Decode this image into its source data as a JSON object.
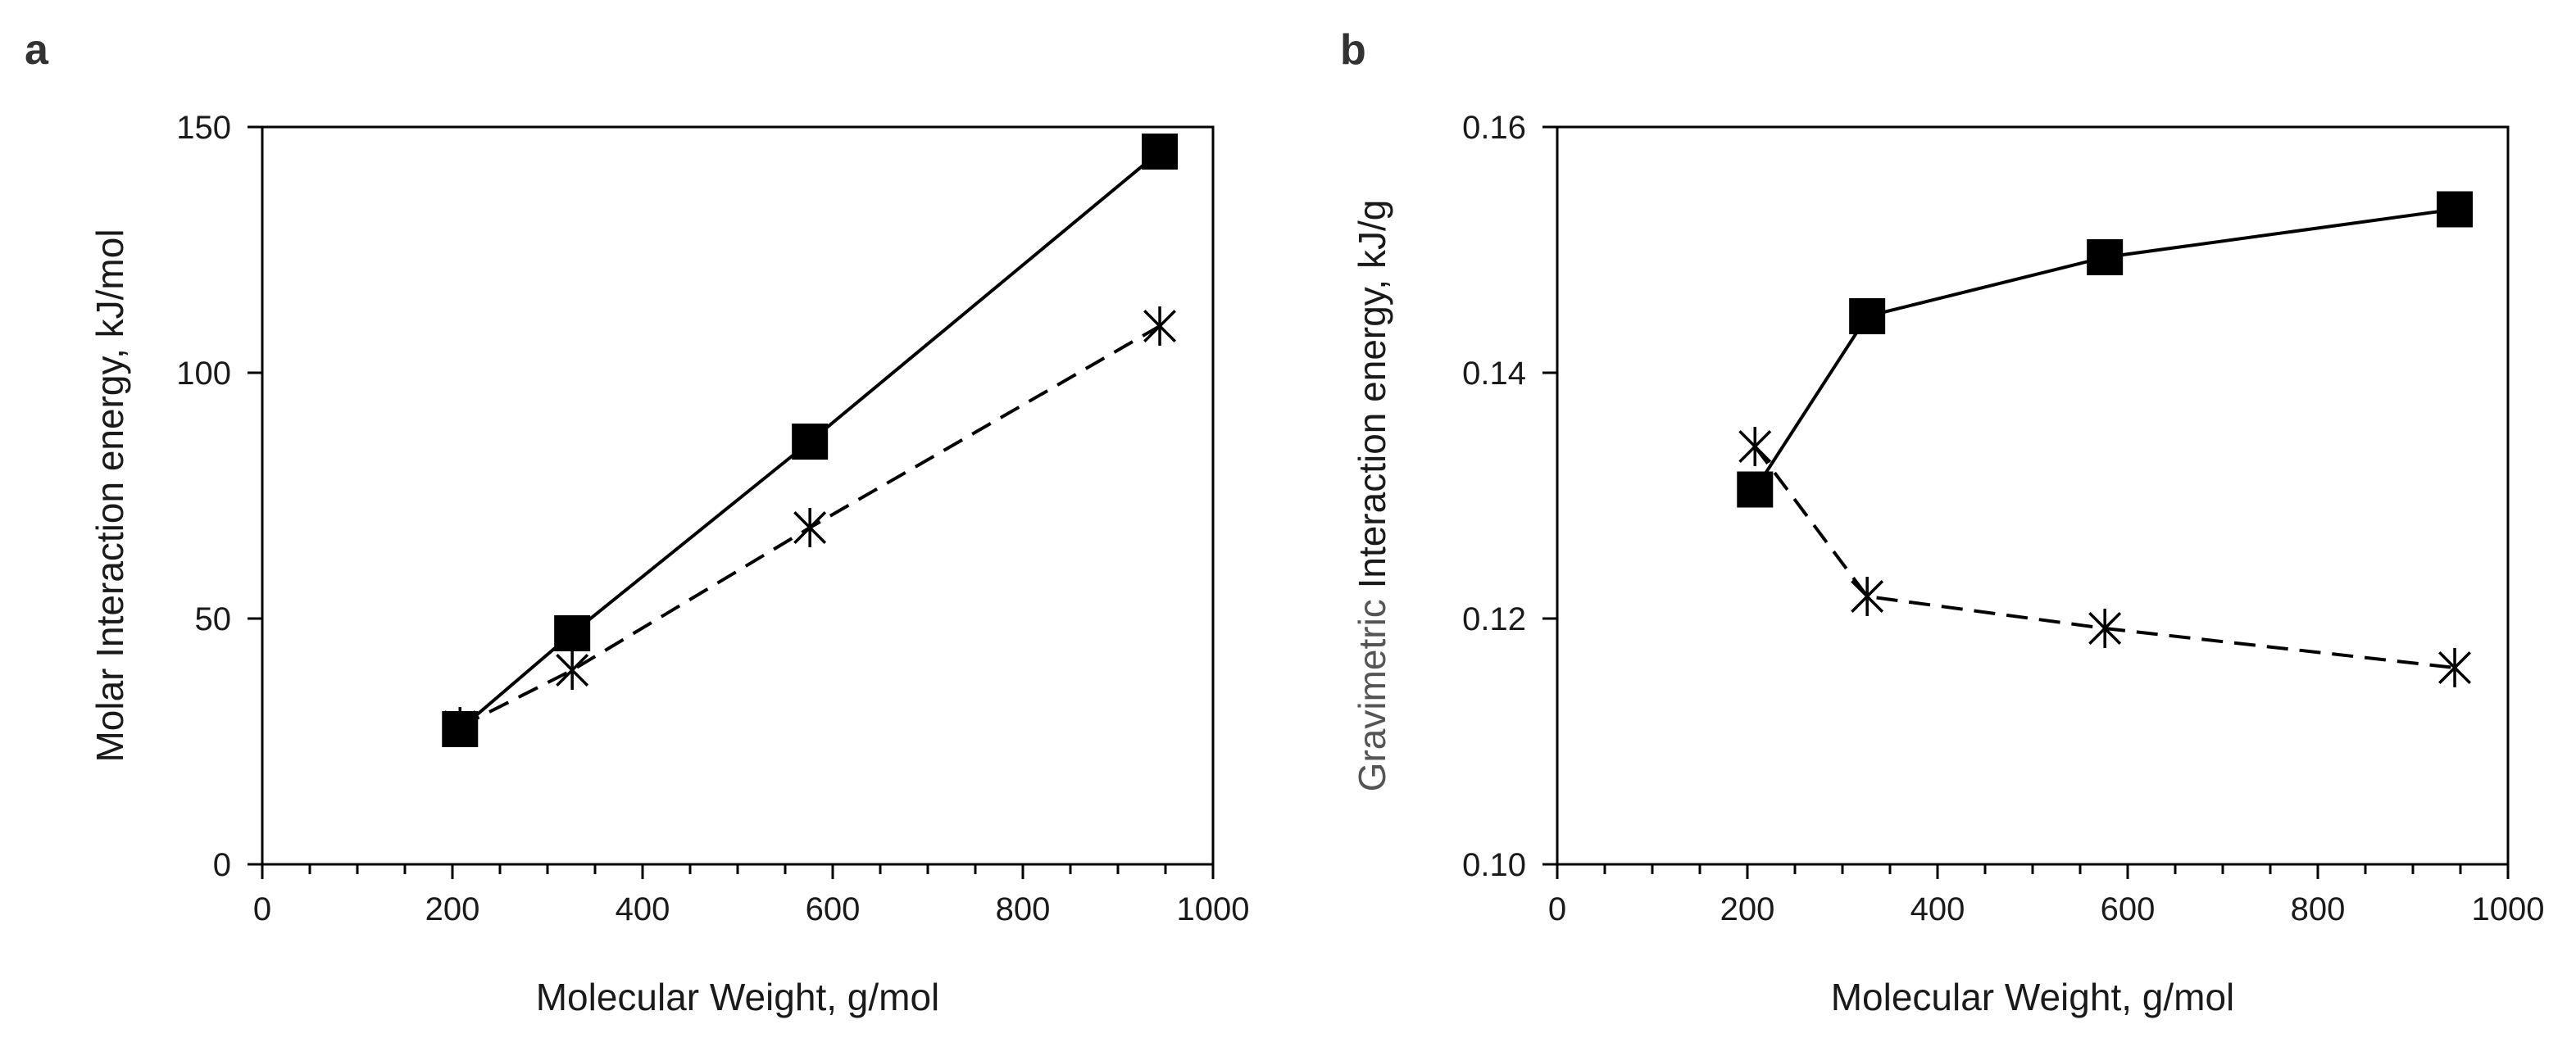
{
  "chart_data": [
    {
      "type": "line",
      "panel_label": "a",
      "xlabel": "Molecular Weight, g/mol",
      "ylabel": "Molar Interaction energy, kJ/mol",
      "xlim": [
        0,
        1000
      ],
      "ylim": [
        0,
        150
      ],
      "x_ticks": [
        0,
        200,
        400,
        600,
        800,
        1000
      ],
      "y_ticks": [
        0,
        50,
        100,
        150
      ],
      "y_tick_labels": [
        "0",
        "50",
        "100",
        "150"
      ],
      "grid": false,
      "series": [
        {
          "name": "squares",
          "marker": "square",
          "line": "solid",
          "x": [
            208,
            326,
            576,
            944
          ],
          "y": [
            27.5,
            47,
            86,
            145
          ]
        },
        {
          "name": "stars",
          "marker": "star",
          "line": "dashed",
          "x": [
            208,
            326,
            576,
            944
          ],
          "y": [
            28,
            39.5,
            68.5,
            109.5
          ]
        }
      ]
    },
    {
      "type": "line",
      "panel_label": "b",
      "xlabel": "Molecular Weight, g/mol",
      "ylabel": "Gravimetric Interaction energy, kJ/g",
      "ylabel_gray_part": "Gravimetric",
      "ylabel_rest": " Interaction energy, kJ/g",
      "xlim": [
        0,
        1000
      ],
      "ylim": [
        0.1,
        0.16
      ],
      "x_ticks": [
        0,
        200,
        400,
        600,
        800,
        1000
      ],
      "y_ticks": [
        0.1,
        0.12,
        0.14,
        0.16
      ],
      "y_tick_labels": [
        "0.10",
        "0.12",
        "0.14",
        "0.16"
      ],
      "grid": false,
      "series": [
        {
          "name": "squares",
          "marker": "square",
          "line": "solid",
          "x": [
            208,
            326,
            576,
            944
          ],
          "y": [
            0.1305,
            0.1446,
            0.1494,
            0.1533
          ]
        },
        {
          "name": "stars",
          "marker": "star",
          "line": "dashed",
          "x": [
            208,
            326,
            576,
            944
          ],
          "y": [
            0.134,
            0.1218,
            0.1192,
            0.116
          ]
        }
      ]
    }
  ],
  "colors": {
    "ink": "#000000",
    "text": "#1a1a1a",
    "gray_text": "#555555"
  }
}
